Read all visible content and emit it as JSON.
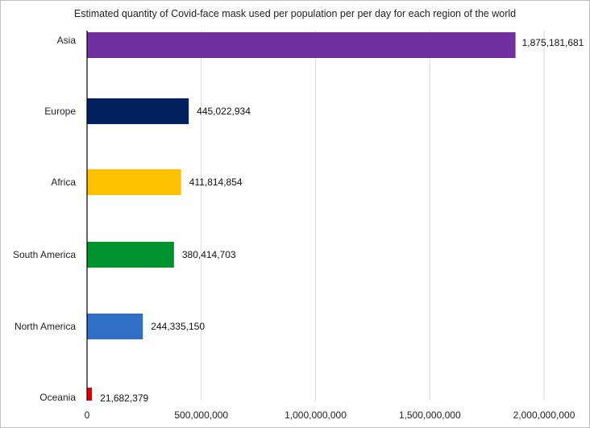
{
  "chart_data": {
    "type": "bar",
    "orientation": "horizontal",
    "title": "Estimated quantity of Covid-face mask used per population per per day for each region of the world",
    "xlabel": "",
    "ylabel": "",
    "xlim": [
      0,
      2000000000
    ],
    "grid": true,
    "categories": [
      "Asia",
      "Europe",
      "Africa",
      "South America",
      "North America",
      "Oceania"
    ],
    "values": [
      1875181681,
      445022934,
      411814854,
      380414703,
      244335150,
      21682379
    ],
    "data_labels": [
      "1,875,181,681",
      "445,022,934",
      "411,814,854",
      "380,414,703",
      "244,335,150",
      "21,682,379"
    ],
    "colors": [
      "#7030a0",
      "#002060",
      "#ffc000",
      "#00922e",
      "#2f6fc6",
      "#e00000"
    ],
    "x_ticks": [
      0,
      500000000,
      1000000000,
      1500000000,
      2000000000
    ],
    "x_tick_labels": [
      "0",
      "500,000,000",
      "1,000,000,000",
      "1,500,000,000",
      "2,000,000,000"
    ]
  }
}
